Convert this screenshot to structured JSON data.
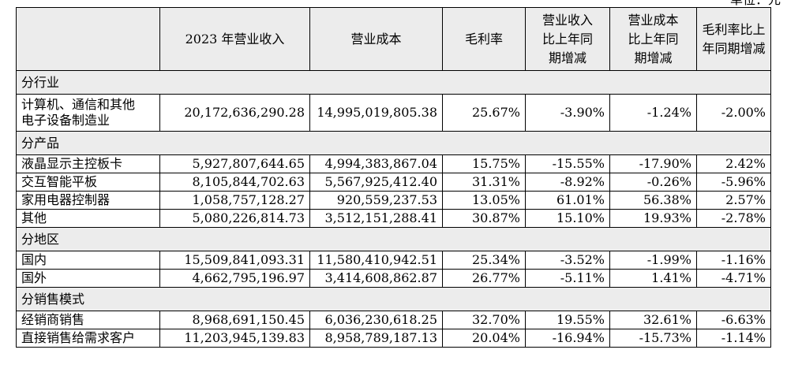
{
  "unit_label": "单位：元",
  "headers": [
    "",
    "2023 年营业收入",
    "营业成本",
    "毛利率",
    "营业收入比上年同期增减",
    "营业成本比上年同期增减",
    "毛利率比上年同期增减"
  ],
  "header_lines": {
    "h4": [
      "营业收入",
      "比上年同",
      "期增减"
    ],
    "h5": [
      "营业成本",
      "比上年同",
      "期增减"
    ],
    "h6": [
      "毛利率比上",
      "年同期增减"
    ]
  },
  "sections": [
    {
      "title": "分行业",
      "rows": [
        {
          "label_lines": [
            "计算机、通信和其他",
            "电子设备制造业"
          ],
          "revenue": "20,172,636,290.28",
          "cost": "14,995,019,805.38",
          "margin": "25.67%",
          "rev_change": "-3.90%",
          "cost_change": "-1.24%",
          "margin_change": "-2.00%"
        }
      ]
    },
    {
      "title": "分产品",
      "rows": [
        {
          "label": "液晶显示主控板卡",
          "revenue": "5,927,807,644.65",
          "cost": "4,994,383,867.04",
          "margin": "15.75%",
          "rev_change": "-15.55%",
          "cost_change": "-17.90%",
          "margin_change": "2.42%"
        },
        {
          "label": "交互智能平板",
          "revenue": "8,105,844,702.63",
          "cost": "5,567,925,412.40",
          "margin": "31.31%",
          "rev_change": "-8.92%",
          "cost_change": "-0.26%",
          "margin_change": "-5.96%"
        },
        {
          "label": "家用电器控制器",
          "revenue": "1,058,757,128.27",
          "cost": "920,559,237.53",
          "margin": "13.05%",
          "rev_change": "61.01%",
          "cost_change": "56.38%",
          "margin_change": "2.57%"
        },
        {
          "label": "其他",
          "revenue": "5,080,226,814.73",
          "cost": "3,512,151,288.41",
          "margin": "30.87%",
          "rev_change": "15.10%",
          "cost_change": "19.93%",
          "margin_change": "-2.78%"
        }
      ]
    },
    {
      "title": "分地区",
      "rows": [
        {
          "label": "国内",
          "revenue": "15,509,841,093.31",
          "cost": "11,580,410,942.51",
          "margin": "25.34%",
          "rev_change": "-3.52%",
          "cost_change": "-1.99%",
          "margin_change": "-1.16%"
        },
        {
          "label": "国外",
          "revenue": "4,662,795,196.97",
          "cost": "3,414,608,862.87",
          "margin": "26.77%",
          "rev_change": "-5.11%",
          "cost_change": "1.41%",
          "margin_change": "-4.71%"
        }
      ]
    },
    {
      "title": "分销售模式",
      "rows": [
        {
          "label": "经销商销售",
          "revenue": "8,968,691,150.45",
          "cost": "6,036,230,618.25",
          "margin": "32.70%",
          "rev_change": "19.55%",
          "cost_change": "32.61%",
          "margin_change": "-6.63%"
        },
        {
          "label": "直接销售给需求客户",
          "revenue": "11,203,945,139.83",
          "cost": "8,958,789,187.13",
          "margin": "20.04%",
          "rev_change": "-16.94%",
          "cost_change": "-15.73%",
          "margin_change": "-1.14%"
        }
      ]
    }
  ]
}
